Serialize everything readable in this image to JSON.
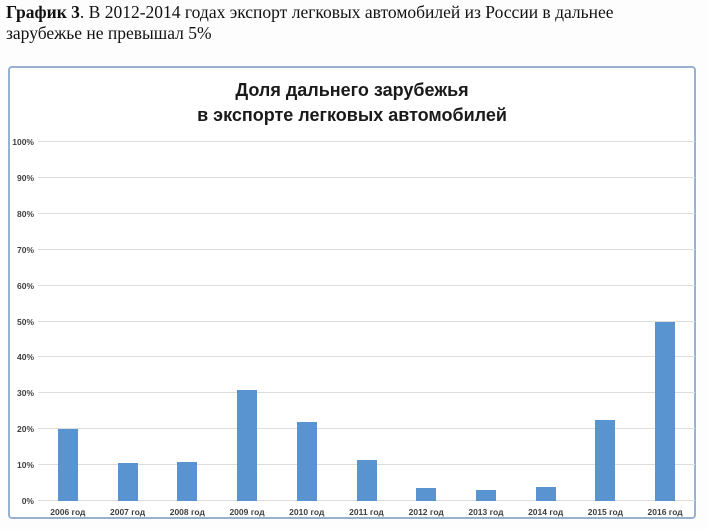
{
  "caption": {
    "label": "График 3",
    "text": ". В 2012-2014 годах экспорт легковых автомобилей из России в дальнее зарубежье не превышал 5%"
  },
  "chart_data": {
    "type": "bar",
    "title": "Доля дальнего зарубежья в экспорте легковых автомобилей",
    "title_lines": [
      "Доля дальнего зарубежья",
      "в экспорте легковых автомобилей"
    ],
    "categories": [
      "2006 год",
      "2007 год",
      "2008 год",
      "2009 год",
      "2010 год",
      "2011 год",
      "2012 год",
      "2013 год",
      "2014 год",
      "2015 год",
      "2016 год"
    ],
    "values": [
      20,
      10.5,
      11,
      31,
      22,
      11.3,
      3.7,
      3,
      4,
      22.5,
      50
    ],
    "xlabel": "",
    "ylabel": "",
    "ylim": [
      0,
      100
    ],
    "ytick_step": 10,
    "ytick_labels": [
      "0%",
      "10%",
      "20%",
      "30%",
      "40%",
      "50%",
      "60%",
      "70%",
      "80%",
      "90%",
      "100%"
    ],
    "grid": true,
    "legend": "none",
    "bar_color": "#5a94d0",
    "grid_color": "#dddddd",
    "border_color": "#97b1cf"
  }
}
